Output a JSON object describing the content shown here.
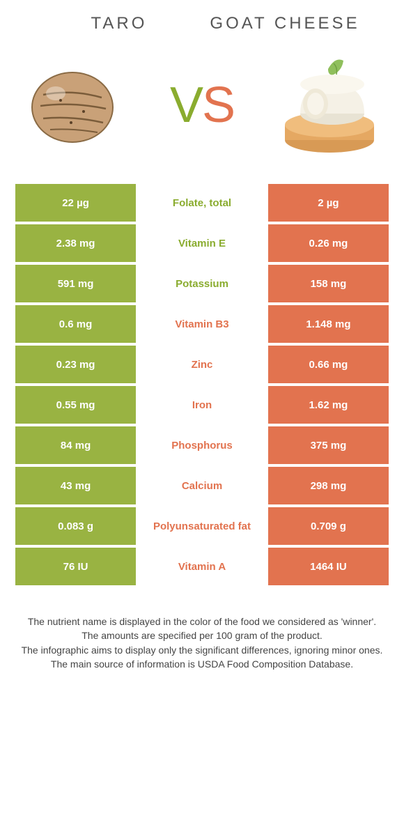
{
  "colors": {
    "green": "#99b342",
    "orange": "#e2734f",
    "mid_green_text": "#8aac2f",
    "mid_orange_text": "#e2734f",
    "title_text": "#555555"
  },
  "food_left": {
    "title": "Taro"
  },
  "food_right": {
    "title": "Goat Cheese"
  },
  "vs": {
    "v": "V",
    "s": "S"
  },
  "rows": [
    {
      "left": "22 µg",
      "label": "Folate, total",
      "right": "2 µg",
      "winner": "left"
    },
    {
      "left": "2.38 mg",
      "label": "Vitamin E",
      "right": "0.26 mg",
      "winner": "left"
    },
    {
      "left": "591 mg",
      "label": "Potassium",
      "right": "158 mg",
      "winner": "left"
    },
    {
      "left": "0.6 mg",
      "label": "Vitamin B3",
      "right": "1.148 mg",
      "winner": "right"
    },
    {
      "left": "0.23 mg",
      "label": "Zinc",
      "right": "0.66 mg",
      "winner": "right"
    },
    {
      "left": "0.55 mg",
      "label": "Iron",
      "right": "1.62 mg",
      "winner": "right"
    },
    {
      "left": "84 mg",
      "label": "Phosphorus",
      "right": "375 mg",
      "winner": "right"
    },
    {
      "left": "43 mg",
      "label": "Calcium",
      "right": "298 mg",
      "winner": "right"
    },
    {
      "left": "0.083 g",
      "label": "Polyunsaturated fat",
      "right": "0.709 g",
      "winner": "right"
    },
    {
      "left": "76 IU",
      "label": "Vitamin A",
      "right": "1464 IU",
      "winner": "right"
    }
  ],
  "footnotes": [
    "The nutrient name is displayed in the color of the food we considered as 'winner'.",
    "The amounts are specified per 100 gram of the product.",
    "The infographic aims to display only the significant differences, ignoring minor ones.",
    "The main source of information is USDA Food Composition Database."
  ]
}
